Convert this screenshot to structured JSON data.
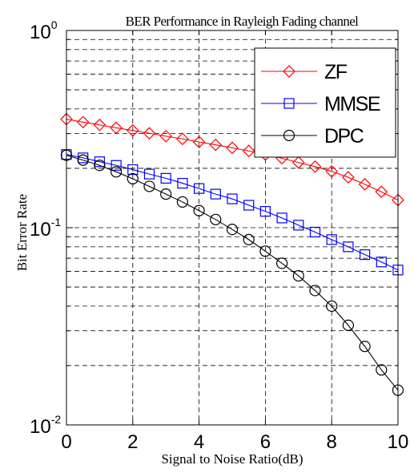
{
  "chart_data": {
    "type": "line",
    "title": "BER Performance in Rayleigh Fading channel",
    "xlabel": "Signal to Noise Ratio(dB)",
    "ylabel": "Bit Error Rate",
    "xlim": [
      0,
      10
    ],
    "ylim": [
      0.01,
      1
    ],
    "yscale": "log",
    "grid": true,
    "grid_style": "dashed",
    "legend_position": "top-right",
    "x_ticks": [
      "0",
      "2",
      "4",
      "6",
      "8",
      "10"
    ],
    "y_ticks": [
      {
        "base": "10",
        "exp": "0",
        "value": 1
      },
      {
        "base": "10",
        "exp": "-1",
        "value": 0.1
      },
      {
        "base": "10",
        "exp": "-2",
        "value": 0.01
      }
    ],
    "x": [
      0,
      0.5,
      1,
      1.5,
      2,
      2.5,
      3,
      3.5,
      4,
      4.5,
      5,
      5.5,
      6,
      6.5,
      7,
      7.5,
      8,
      8.5,
      9,
      9.5,
      10
    ],
    "series": [
      {
        "name": "ZF",
        "color": "#ff0000",
        "marker": "diamond",
        "values": [
          0.355,
          0.343,
          0.332,
          0.321,
          0.311,
          0.301,
          0.291,
          0.282,
          0.272,
          0.263,
          0.254,
          0.245,
          0.235,
          0.225,
          0.214,
          0.204,
          0.193,
          0.18,
          0.166,
          0.152,
          0.138
        ]
      },
      {
        "name": "MMSE",
        "color": "#0000ff",
        "marker": "square",
        "values": [
          0.235,
          0.226,
          0.216,
          0.207,
          0.197,
          0.187,
          0.178,
          0.168,
          0.158,
          0.148,
          0.14,
          0.13,
          0.121,
          0.112,
          0.103,
          0.095,
          0.087,
          0.08,
          0.073,
          0.067,
          0.061
        ]
      },
      {
        "name": "DPC",
        "color": "#000000",
        "marker": "circle",
        "values": [
          0.233,
          0.22,
          0.207,
          0.192,
          0.177,
          0.162,
          0.148,
          0.135,
          0.122,
          0.11,
          0.098,
          0.087,
          0.076,
          0.066,
          0.057,
          0.048,
          0.04,
          0.032,
          0.025,
          0.019,
          0.015
        ]
      }
    ]
  }
}
